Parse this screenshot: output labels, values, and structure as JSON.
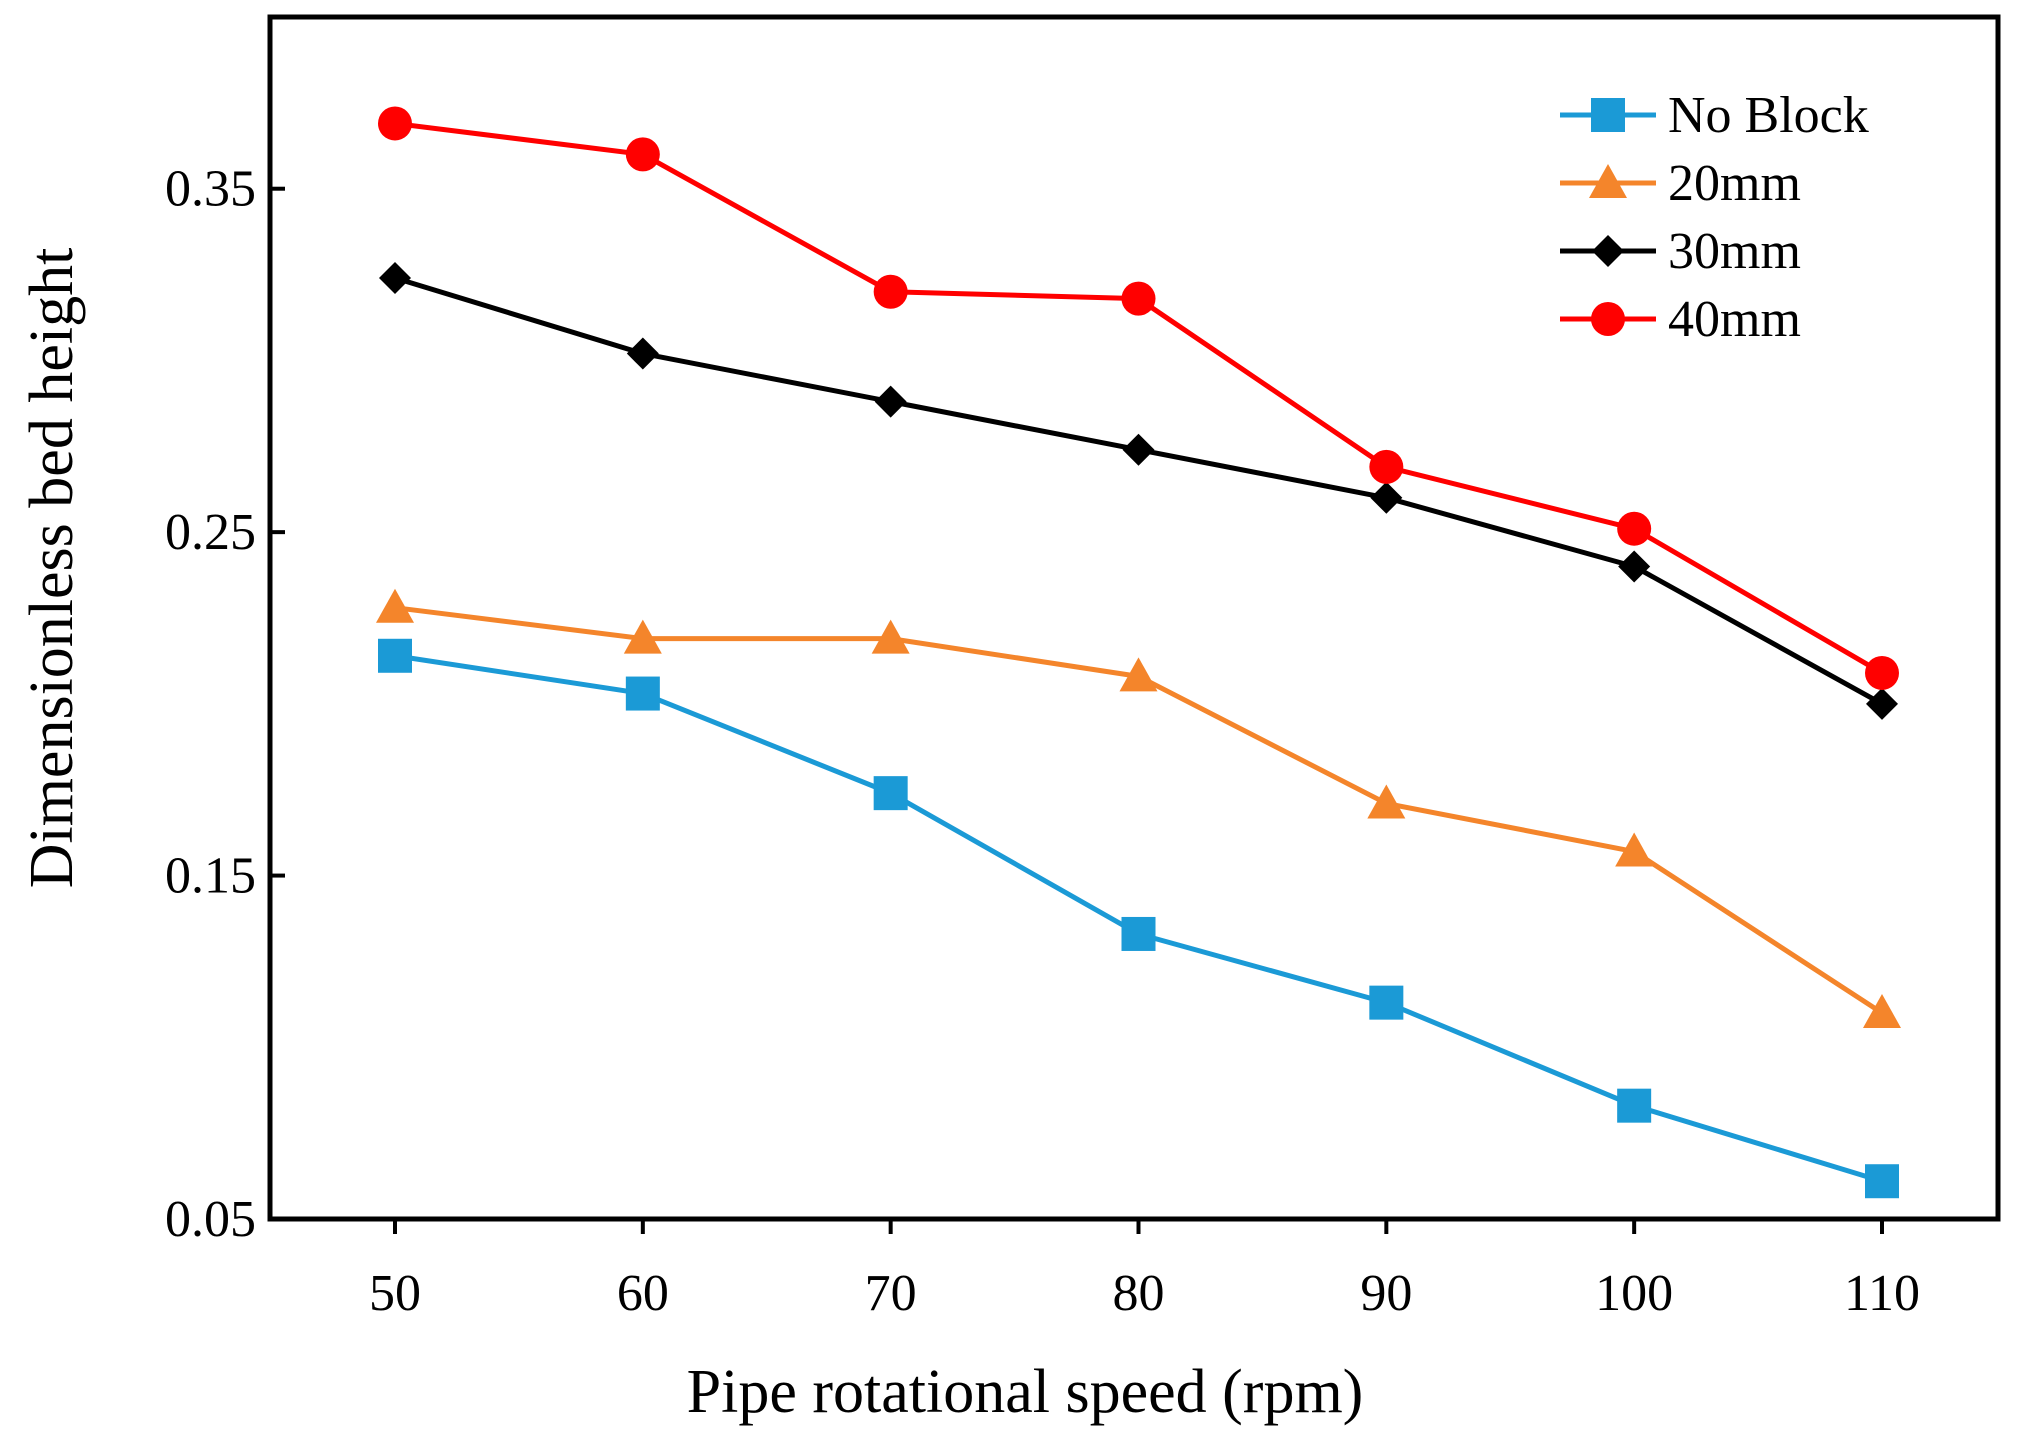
{
  "chart_data": {
    "type": "line",
    "xlabel": "Pipe rotational speed (rpm)",
    "ylabel": "Dimensionless bed height",
    "x": [
      50,
      60,
      70,
      80,
      90,
      100,
      110
    ],
    "xticks": [
      "50",
      "60",
      "70",
      "80",
      "90",
      "100",
      "110"
    ],
    "ylim": [
      0.05,
      0.4
    ],
    "yticks": [
      0.05,
      0.15,
      0.25,
      0.35
    ],
    "ytick_labels": [
      "0.05",
      "0.15",
      "0.25",
      "0.35"
    ],
    "legend_position": "top-right",
    "series": [
      {
        "name": "No Block",
        "color": "#1b9ad6",
        "marker": "square",
        "values": [
          0.214,
          0.203,
          0.174,
          0.133,
          0.113,
          0.083,
          0.061
        ]
      },
      {
        "name": "20mm",
        "color": "#f4852b",
        "marker": "triangle",
        "values": [
          0.228,
          0.219,
          0.219,
          0.208,
          0.171,
          0.157,
          0.11
        ]
      },
      {
        "name": "30mm",
        "color": "#000000",
        "marker": "diamond",
        "values": [
          0.324,
          0.302,
          0.288,
          0.274,
          0.26,
          0.24,
          0.2
        ]
      },
      {
        "name": "40mm",
        "color": "#ff0000",
        "marker": "circle",
        "values": [
          0.369,
          0.36,
          0.32,
          0.318,
          0.269,
          0.251,
          0.209
        ]
      }
    ]
  }
}
